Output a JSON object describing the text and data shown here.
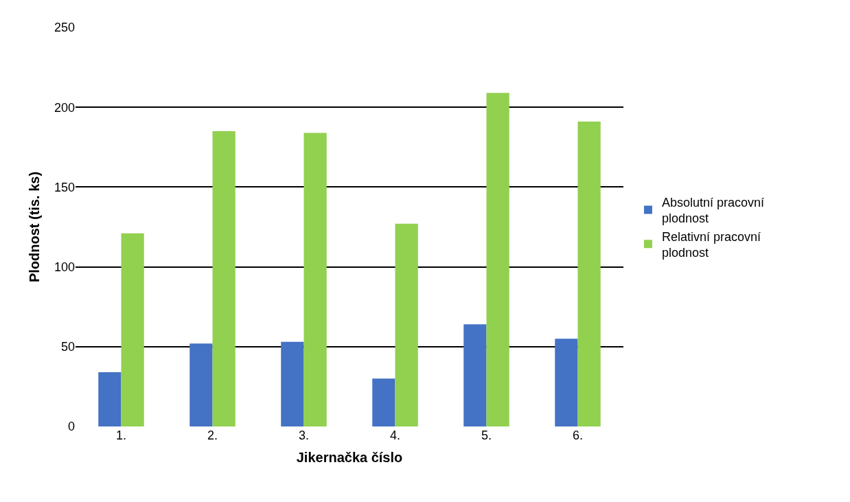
{
  "chart_data": {
    "type": "bar",
    "xlabel": "Jikernačka číslo",
    "ylabel": "Plodnost (tis. ks)",
    "categories": [
      "1.",
      "2.",
      "3.",
      "4.",
      "5.",
      "6."
    ],
    "series": [
      {
        "name": "Absolutní pracovní plodnost",
        "color": "#4472c4",
        "values": [
          34,
          52,
          53,
          30,
          64,
          55
        ]
      },
      {
        "name": "Relativní pracovní plodnost",
        "color": "#92d050",
        "values": [
          121,
          185,
          184,
          127,
          209,
          191
        ]
      }
    ],
    "ylim": [
      0,
      250
    ],
    "yticks": [
      0,
      50,
      100,
      150,
      200,
      250
    ],
    "grid": "y",
    "legend": "right"
  }
}
